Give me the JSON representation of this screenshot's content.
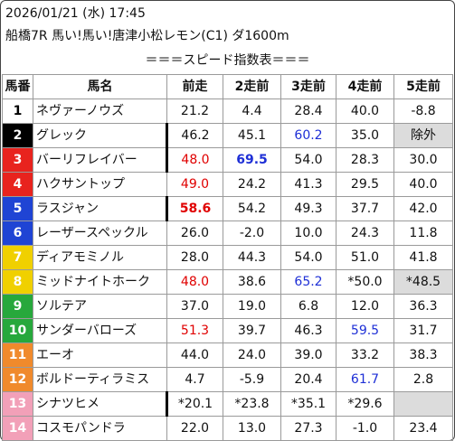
{
  "header": {
    "datetime": "2026/01/21 (水) 17:45",
    "race": "船橋7R 馬い!馬い!唐津小松レモン(C1) ダ1600m",
    "subtitle": "＝＝＝スピード指数表＝＝＝"
  },
  "table": {
    "columns": [
      "馬番",
      "馬名",
      "前走",
      "2走前",
      "3走前",
      "4走前",
      "5走前"
    ],
    "rows": [
      {
        "num": "1",
        "name": "ネヴァーノウズ",
        "bg": "#ffffff",
        "fg": "#000000",
        "cells": [
          {
            "v": "21.2"
          },
          {
            "v": "4.4"
          },
          {
            "v": "28.4"
          },
          {
            "v": "40.0"
          },
          {
            "v": "-8.8"
          }
        ]
      },
      {
        "num": "2",
        "name": "グレック",
        "bg": "#000000",
        "fg": "#ffffff",
        "cells": [
          {
            "v": "46.2",
            "bar": true
          },
          {
            "v": "45.1"
          },
          {
            "v": "60.2",
            "c": "blue"
          },
          {
            "v": "35.0"
          },
          {
            "v": "除外",
            "gray": true
          }
        ]
      },
      {
        "num": "3",
        "name": "バーリフレイバー",
        "bg": "#e8231e",
        "fg": "#ffffff",
        "cells": [
          {
            "v": "48.0",
            "c": "red",
            "bar": true
          },
          {
            "v": "69.5",
            "c": "blue",
            "b": true
          },
          {
            "v": "54.0"
          },
          {
            "v": "28.3"
          },
          {
            "v": "30.0"
          }
        ]
      },
      {
        "num": "4",
        "name": "ハクサントップ",
        "bg": "#e8231e",
        "fg": "#ffffff",
        "cells": [
          {
            "v": "49.0",
            "c": "red"
          },
          {
            "v": "24.2"
          },
          {
            "v": "41.3"
          },
          {
            "v": "29.5"
          },
          {
            "v": "40.0"
          }
        ]
      },
      {
        "num": "5",
        "name": "ラスジャン",
        "bg": "#1f44d4",
        "fg": "#ffffff",
        "cells": [
          {
            "v": "58.6",
            "c": "red",
            "b": true,
            "bar": true
          },
          {
            "v": "54.2"
          },
          {
            "v": "49.3"
          },
          {
            "v": "37.7"
          },
          {
            "v": "42.0"
          }
        ]
      },
      {
        "num": "6",
        "name": "レーザースペックル",
        "bg": "#1f44d4",
        "fg": "#ffffff",
        "cells": [
          {
            "v": "26.0"
          },
          {
            "v": "-2.0"
          },
          {
            "v": "10.0"
          },
          {
            "v": "24.3"
          },
          {
            "v": "11.8"
          }
        ]
      },
      {
        "num": "7",
        "name": "ディアモミノル",
        "bg": "#f0d000",
        "fg": "#ffffff",
        "cells": [
          {
            "v": "28.0"
          },
          {
            "v": "44.3"
          },
          {
            "v": "54.0"
          },
          {
            "v": "51.0"
          },
          {
            "v": "41.8"
          }
        ]
      },
      {
        "num": "8",
        "name": "ミッドナイトホーク",
        "bg": "#f0d000",
        "fg": "#ffffff",
        "cells": [
          {
            "v": "48.0",
            "c": "red"
          },
          {
            "v": "38.6"
          },
          {
            "v": "65.2",
            "c": "blue"
          },
          {
            "v": "*50.0"
          },
          {
            "v": "*48.5",
            "gray": true
          }
        ]
      },
      {
        "num": "9",
        "name": "ソルテア",
        "bg": "#27a83c",
        "fg": "#ffffff",
        "cells": [
          {
            "v": "37.0"
          },
          {
            "v": "19.0"
          },
          {
            "v": "6.8"
          },
          {
            "v": "12.0"
          },
          {
            "v": "36.3"
          }
        ]
      },
      {
        "num": "10",
        "name": "サンダーバローズ",
        "bg": "#27a83c",
        "fg": "#ffffff",
        "cells": [
          {
            "v": "51.3",
            "c": "red"
          },
          {
            "v": "39.7"
          },
          {
            "v": "46.3"
          },
          {
            "v": "59.5",
            "c": "blue"
          },
          {
            "v": "31.7"
          }
        ]
      },
      {
        "num": "11",
        "name": "エーオ",
        "bg": "#f08a2c",
        "fg": "#ffffff",
        "cells": [
          {
            "v": "44.0"
          },
          {
            "v": "24.0"
          },
          {
            "v": "39.0"
          },
          {
            "v": "33.2"
          },
          {
            "v": "38.3"
          }
        ]
      },
      {
        "num": "12",
        "name": "ボルドーティラミス",
        "bg": "#f08a2c",
        "fg": "#ffffff",
        "cells": [
          {
            "v": "4.7"
          },
          {
            "v": "-5.9"
          },
          {
            "v": "20.4"
          },
          {
            "v": "61.7",
            "c": "blue"
          },
          {
            "v": "2.8"
          }
        ]
      },
      {
        "num": "13",
        "name": "シナツヒメ",
        "bg": "#f2a0b8",
        "fg": "#ffffff",
        "cells": [
          {
            "v": "*20.1",
            "bar": true
          },
          {
            "v": "*23.8"
          },
          {
            "v": "*35.1"
          },
          {
            "v": "*29.6"
          },
          {
            "v": "",
            "gray": true
          }
        ]
      },
      {
        "num": "14",
        "name": "コスモパンドラ",
        "bg": "#f2a0b8",
        "fg": "#ffffff",
        "cells": [
          {
            "v": "22.0"
          },
          {
            "v": "13.0"
          },
          {
            "v": "27.3"
          },
          {
            "v": "-1.0"
          },
          {
            "v": "23.4"
          }
        ]
      }
    ]
  }
}
